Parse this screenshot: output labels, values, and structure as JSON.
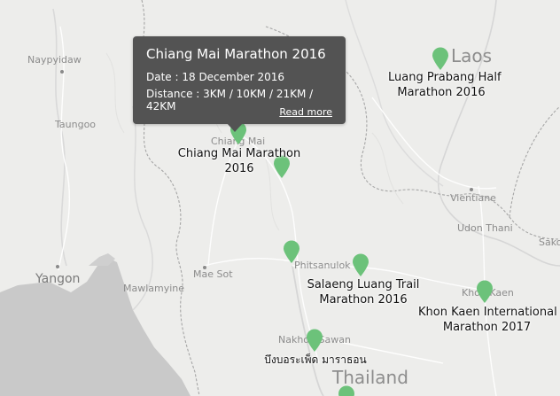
{
  "map": {
    "place_labels": {
      "laos": "Laos",
      "thailand": "Thailand",
      "naypyidaw": "Naypyidaw",
      "taungoo": "Taungoo",
      "yangon": "Yangon",
      "mawlamyine": "Mawlamyine",
      "mae_sot": "Mae Sot",
      "chiang_mai": "Chiang Mai",
      "phitsanulok": "Phitsanulok",
      "vientiane": "Vientiane",
      "udon_thani": "Udon Thani",
      "khon_kaen": "Khon Kaen",
      "nakhon_sawan": "Nakhon Sawan",
      "sakon": "Sako"
    }
  },
  "markers": [
    {
      "name": "Luang Prabang Half Marathon 2016",
      "line1": "Luang Prabang Half",
      "line2": "Marathon 2016"
    },
    {
      "name": "Chiang Mai Marathon 2016",
      "line1": "Chiang Mai Marathon",
      "line2": "2016"
    },
    {
      "name": "Salaeng Luang Trail Marathon 2016",
      "line1": "Salaeng Luang Trail",
      "line2": "Marathon 2016"
    },
    {
      "name": "Khon Kaen International Marathon 2017",
      "line1": "Khon Kaen International",
      "line2": "Marathon 2017"
    },
    {
      "name": "บึงบอระเพ็ด มาราธอน",
      "line1": "บึงบอระเพ็ด มาราธอน",
      "line2": ""
    },
    {
      "name": "Phitsanulok marker",
      "line1": "",
      "line2": ""
    },
    {
      "name": "Thailand marker",
      "line1": "",
      "line2": ""
    }
  ],
  "popup": {
    "title": "Chiang Mai Marathon 2016",
    "date": "Date : 18 December 2016",
    "distance": "Distance : 3KM / 10KM / 21KM / 42KM",
    "link": "Read more"
  },
  "colors": {
    "marker": "#6cc27a",
    "popup_bg": "#535353",
    "sea": "#c8c8c8",
    "land": "#ededeb"
  }
}
